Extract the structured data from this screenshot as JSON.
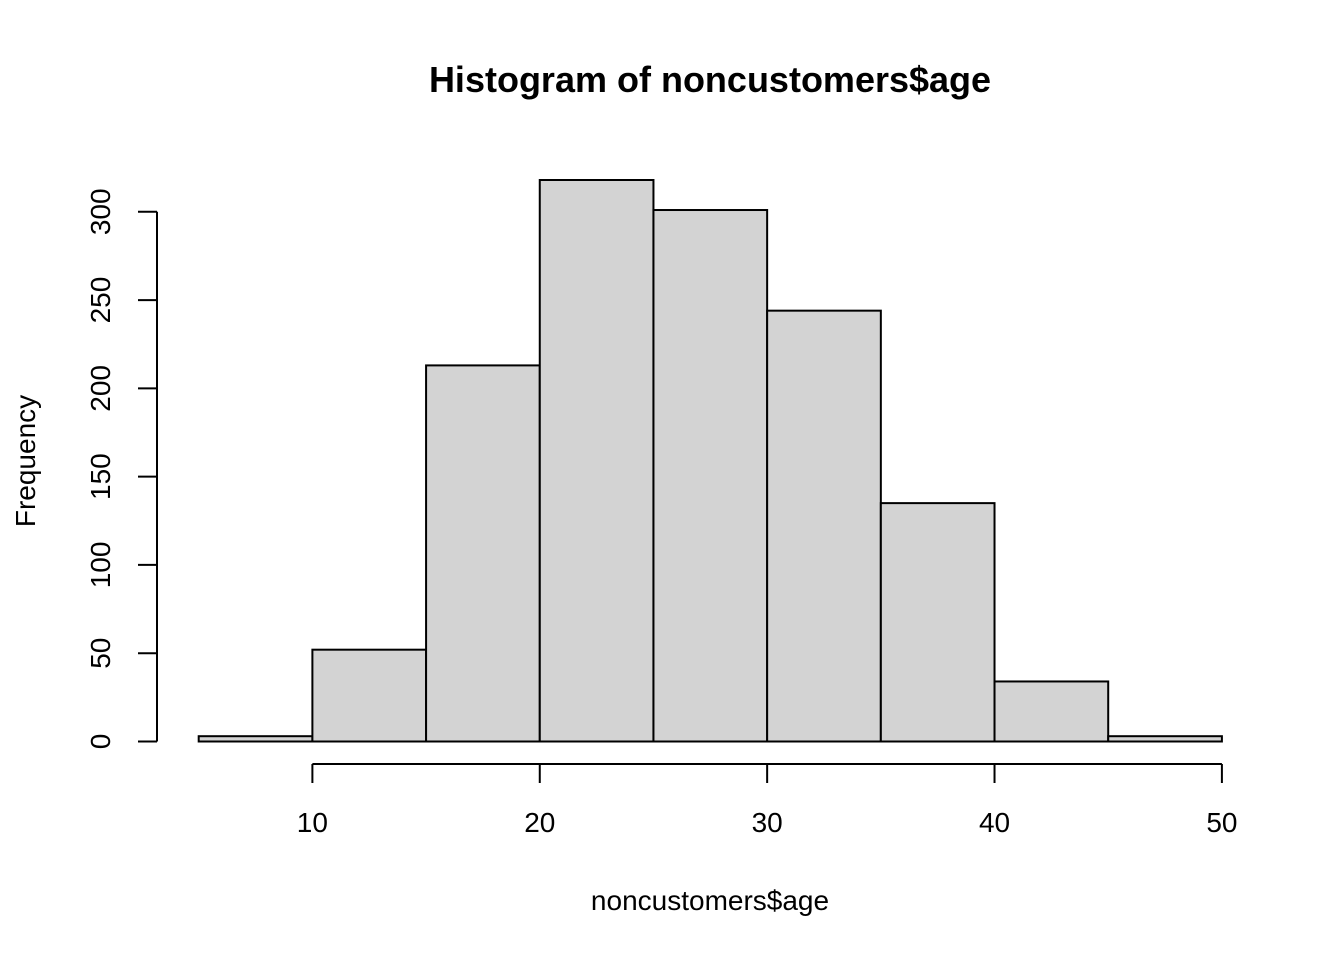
{
  "chart_data": {
    "type": "bar",
    "subtype": "histogram",
    "title": "Histogram of noncustomers$age",
    "xlabel": "noncustomers$age",
    "ylabel": "Frequency",
    "bins": [
      {
        "start": 5,
        "end": 10,
        "count": 3
      },
      {
        "start": 10,
        "end": 15,
        "count": 52
      },
      {
        "start": 15,
        "end": 20,
        "count": 213
      },
      {
        "start": 20,
        "end": 25,
        "count": 318
      },
      {
        "start": 25,
        "end": 30,
        "count": 301
      },
      {
        "start": 30,
        "end": 35,
        "count": 244
      },
      {
        "start": 35,
        "end": 40,
        "count": 135
      },
      {
        "start": 40,
        "end": 45,
        "count": 34
      },
      {
        "start": 45,
        "end": 50,
        "count": 3
      }
    ],
    "xticks": [
      "10",
      "20",
      "30",
      "40",
      "50"
    ],
    "yticks": [
      "0",
      "50",
      "100",
      "150",
      "200",
      "250",
      "300"
    ],
    "xlim": [
      5,
      50
    ],
    "ylim": [
      0,
      318
    ],
    "bar_color": "#d3d3d3",
    "grid": false
  }
}
